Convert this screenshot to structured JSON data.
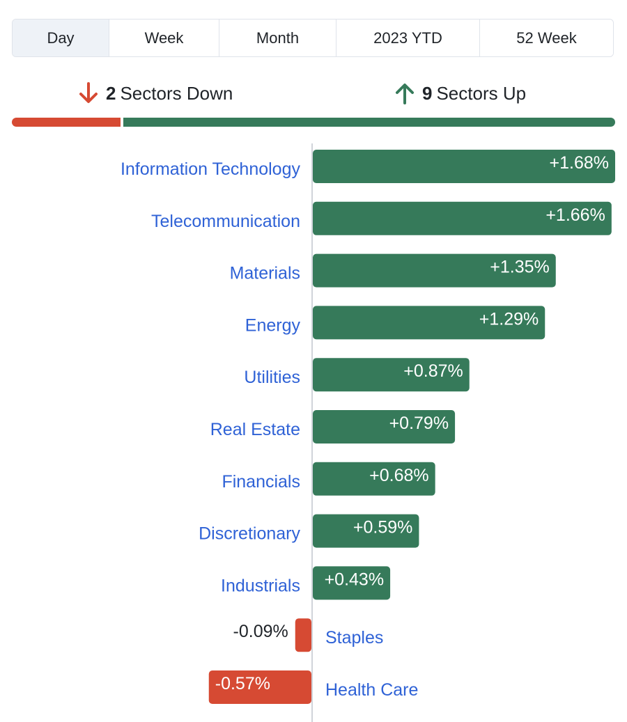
{
  "tabs": [
    {
      "label": "Day",
      "active": true
    },
    {
      "label": "Week",
      "active": false
    },
    {
      "label": "Month",
      "active": false
    },
    {
      "label": "2023 YTD",
      "active": false
    },
    {
      "label": "52 Week",
      "active": false
    }
  ],
  "summary": {
    "down": {
      "count": "2",
      "label": "Sectors Down",
      "icon": "arrow-down-icon"
    },
    "up": {
      "count": "9",
      "label": "Sectors Up",
      "icon": "arrow-up-icon"
    }
  },
  "colors": {
    "positive": "#367a5a",
    "negative": "#d64a33",
    "link": "#2f62d6",
    "axis": "#d0d4da",
    "tab_active_bg": "#eef2f7"
  },
  "chart_data": {
    "type": "bar",
    "orientation": "horizontal",
    "unit": "%",
    "categories": [
      "Information Technology",
      "Telecommunication",
      "Materials",
      "Energy",
      "Utilities",
      "Real Estate",
      "Financials",
      "Discretionary",
      "Industrials",
      "Staples",
      "Health Care"
    ],
    "values": [
      1.68,
      1.66,
      1.35,
      1.29,
      0.87,
      0.79,
      0.68,
      0.59,
      0.43,
      -0.09,
      -0.57
    ],
    "labels": [
      "+1.68%",
      "+1.66%",
      "+1.35%",
      "+1.29%",
      "+0.87%",
      "+0.79%",
      "+0.68%",
      "+0.59%",
      "+0.43%",
      "-0.09%",
      "-0.57%"
    ]
  }
}
